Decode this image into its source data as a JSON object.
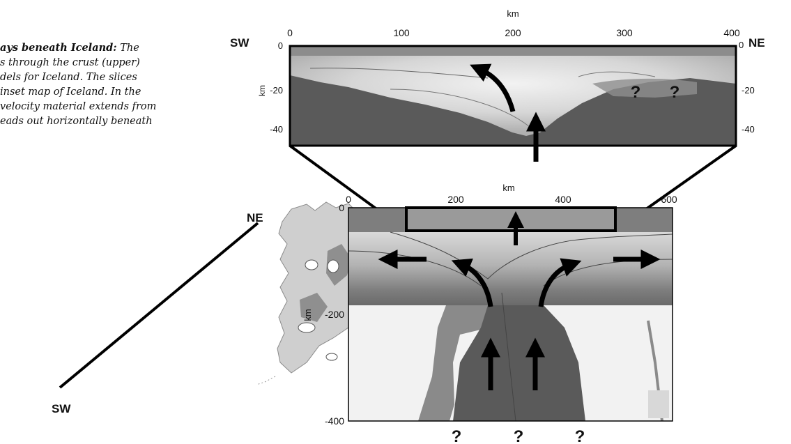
{
  "caption": {
    "lines": [
      {
        "bold": "ays beneath Iceland:",
        "text": " The"
      },
      {
        "bold": "",
        "text": "s through the crust (upper)"
      },
      {
        "bold": "",
        "text": "dels for Iceland. The slices"
      },
      {
        "bold": "",
        "text": "inset map of Iceland. In the"
      },
      {
        "bold": "",
        "text": "velocity material extends from"
      },
      {
        "bold": "",
        "text": "eads out horizontally beneath"
      }
    ]
  },
  "map": {
    "ne_label": "NE",
    "sw_label": "SW"
  },
  "upper_panel": {
    "unit_label": "km",
    "left_label": "SW",
    "right_label": "NE",
    "x_ticks": [
      "0",
      "100",
      "200",
      "300",
      "400"
    ],
    "y_ticks": [
      "0",
      "-20",
      "-40"
    ],
    "right_ticks": [
      "0",
      "-20",
      "-40"
    ],
    "y_axis_label": "km",
    "question_marks": [
      "?",
      "?"
    ]
  },
  "lower_panel": {
    "unit_label": "km",
    "x_ticks": [
      "0",
      "200",
      "400",
      "600"
    ],
    "y_ticks": [
      "0",
      "-200",
      "-400"
    ],
    "y_axis_label": "km",
    "question_marks": [
      "?",
      "?",
      "?"
    ]
  }
}
